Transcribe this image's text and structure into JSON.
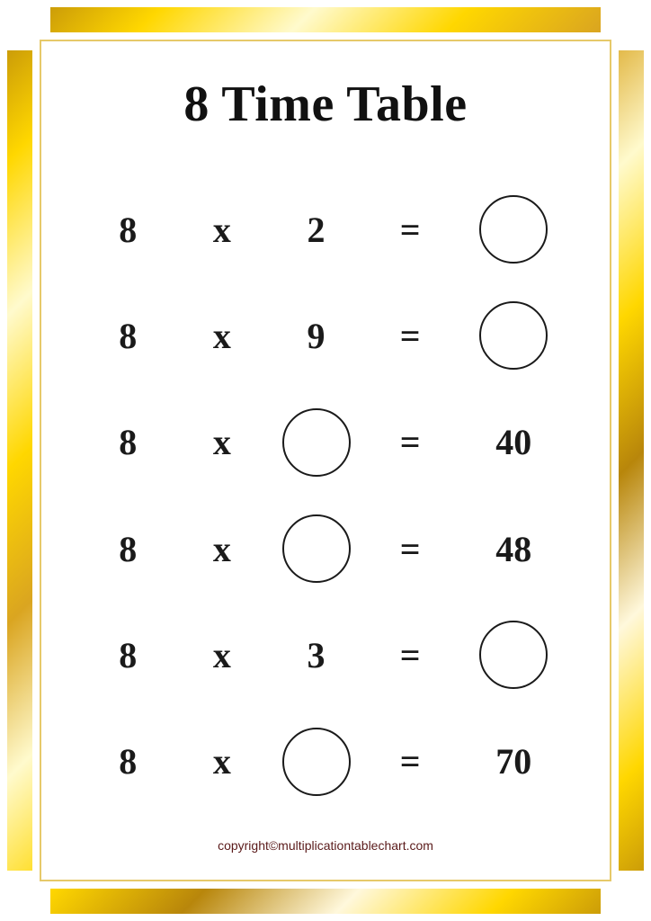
{
  "title": {
    "text": "8 Time Table",
    "fontsize": 56,
    "color": "#111111"
  },
  "row_fontsize": 40,
  "circle": {
    "diameter": 76,
    "border_color": "#1a1a1a",
    "border_width": 2.5
  },
  "worksheet": {
    "multiplier": "8",
    "operator": "x",
    "equals": "=",
    "rows": [
      {
        "operand": "2",
        "result_blank": true,
        "result": ""
      },
      {
        "operand": "9",
        "result_blank": true,
        "result": ""
      },
      {
        "operand": "",
        "operand_blank": true,
        "result": "40"
      },
      {
        "operand": "",
        "operand_blank": true,
        "result": "48"
      },
      {
        "operand": "3",
        "result_blank": true,
        "result": ""
      },
      {
        "operand": "",
        "operand_blank": true,
        "result": "70"
      }
    ]
  },
  "footer": {
    "text": "copyright©multiplicationtablechart.com",
    "fontsize": 14,
    "color": "#5a1a1a"
  },
  "frame": {
    "gold_gradient": [
      "#b8860b",
      "#ffd700",
      "#fffacd",
      "#ffd700",
      "#daa520",
      "#fffacd",
      "#ffd700",
      "#b8860b",
      "#fff8dc",
      "#ffd700",
      "#b8860b"
    ],
    "inner_border_color": "#e6c96a",
    "corner_box_size": 48,
    "corner_box_color": "#ffffff"
  }
}
